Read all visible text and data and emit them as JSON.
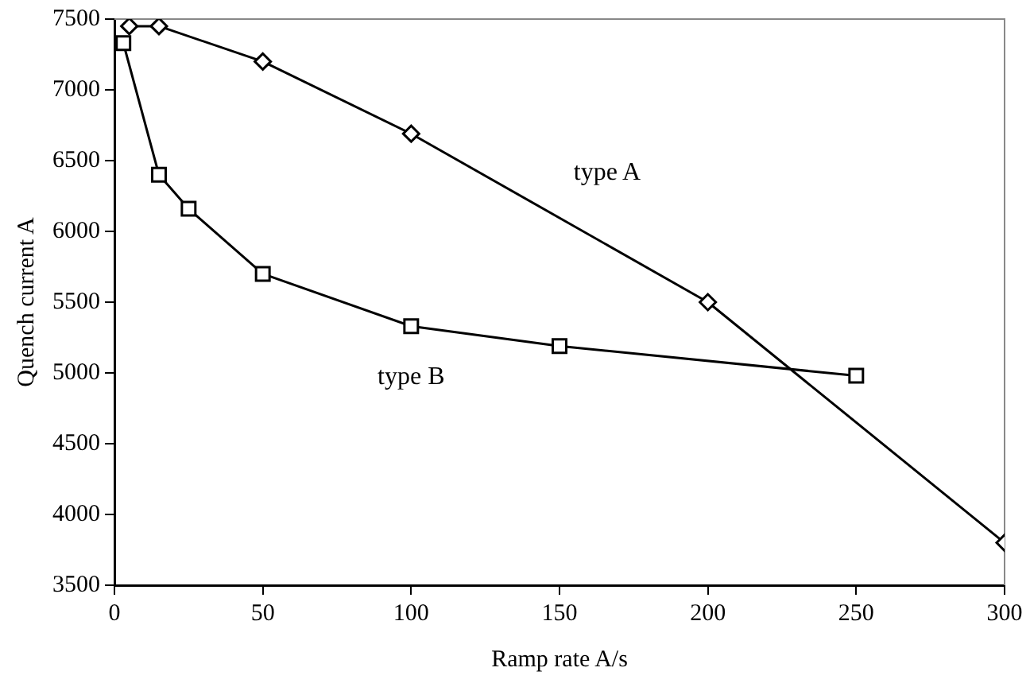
{
  "chart_data": {
    "type": "line",
    "xlabel": "Ramp rate A/s",
    "ylabel": "Quench current A",
    "xlim": [
      0,
      300
    ],
    "xticks": [
      0,
      50,
      100,
      150,
      200,
      250,
      300
    ],
    "ylim": [
      3500,
      7500
    ],
    "yticks": [
      3500,
      4000,
      4500,
      5000,
      5500,
      6000,
      6500,
      7000,
      7500
    ],
    "grid": false,
    "legend": false,
    "line_style": "solid",
    "series": [
      {
        "name": "type A",
        "color": "#000000",
        "marker": "diamond",
        "x": [
          5,
          15,
          50,
          100,
          200,
          300
        ],
        "values": [
          7450,
          7450,
          7200,
          6690,
          5500,
          3800
        ]
      },
      {
        "name": "type B",
        "color": "#000000",
        "marker": "square",
        "x": [
          3,
          15,
          25,
          50,
          100,
          150,
          250
        ],
        "values": [
          7330,
          6400,
          6160,
          5700,
          5330,
          5190,
          4980
        ]
      }
    ]
  }
}
